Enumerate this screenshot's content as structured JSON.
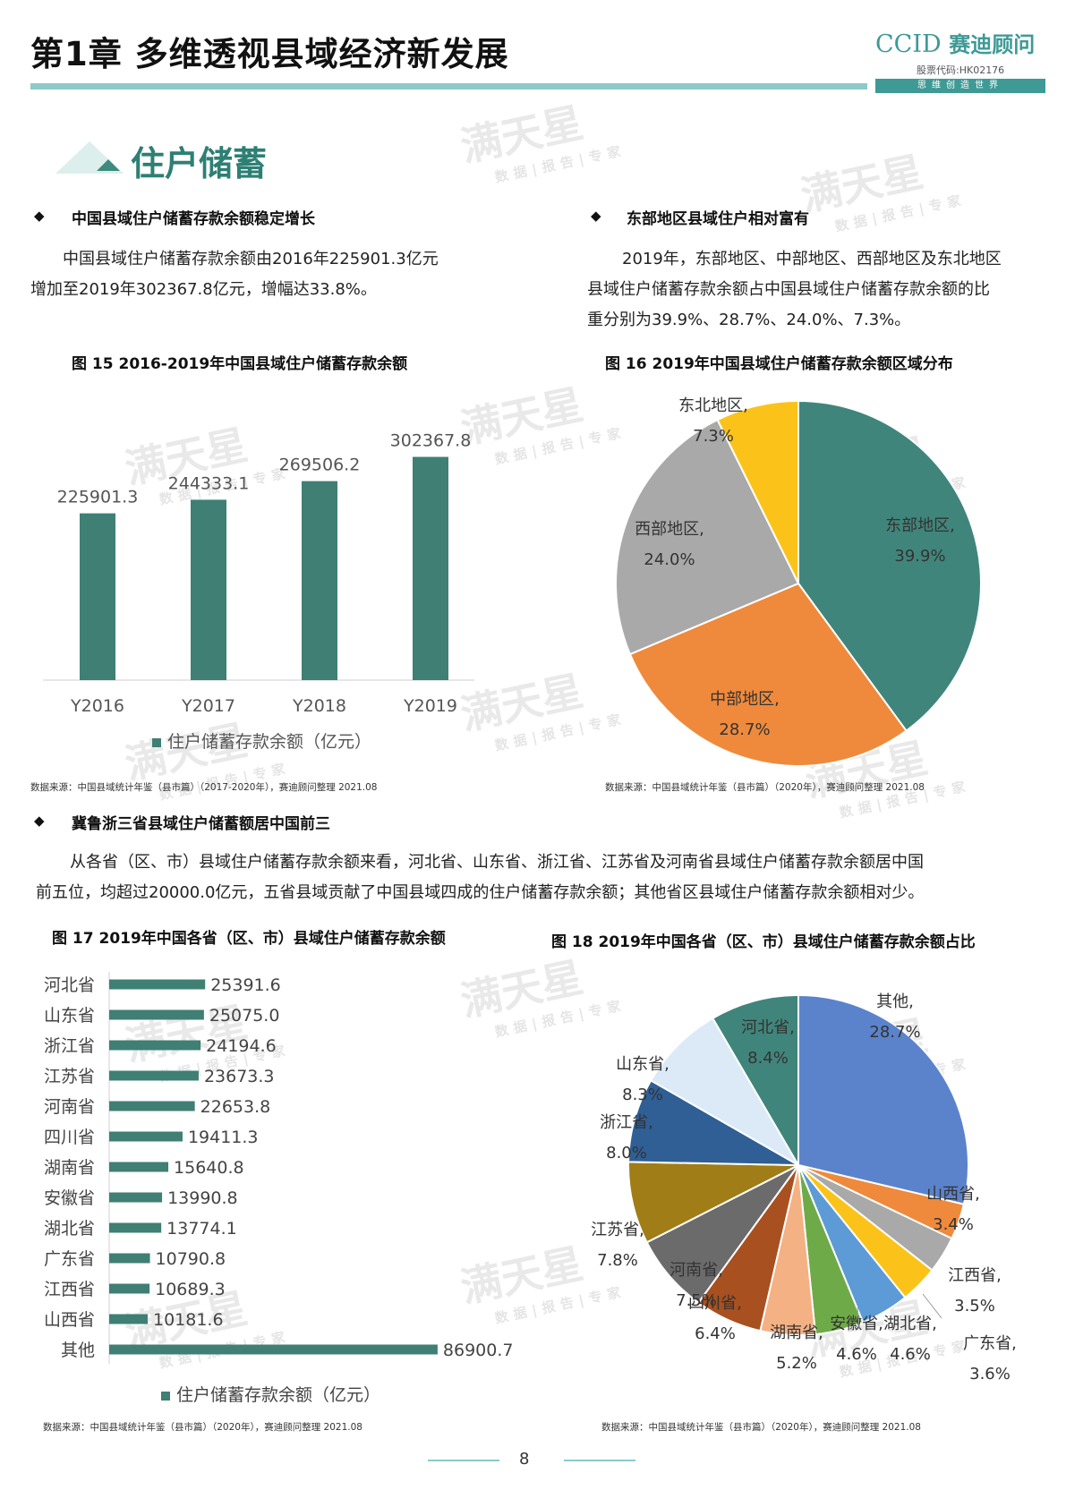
{
  "header": {
    "chapter_title": "第1章  多维透视县域经济新发展",
    "logo_text": "CCID",
    "logo_cn": "赛迪顾问",
    "stock_code": "股票代码:HK02176",
    "slogan": "思维创造世界"
  },
  "watermark": {
    "main": "满天星",
    "sub": "数据|报告|专家"
  },
  "section_title": "住户储蓄",
  "blocks": {
    "b1": {
      "heading": "中国县域住户储蓄存款余额稳定增长",
      "text_line1": "中国县域住户储蓄存款余额由2016年225901.3亿元",
      "text_line2": "增加至2019年302367.8亿元，增幅达33.8%。"
    },
    "b2": {
      "heading": "东部地区县域住户相对富有",
      "text_line1": "2019年，东部地区、中部地区、西部地区及东北地区",
      "text_line2": "县域住户储蓄存款余额占中国县域住户储蓄存款余额的比",
      "text_line3": "重分别为39.9%、28.7%、24.0%、7.3%。"
    },
    "b3": {
      "heading": "冀鲁浙三省县域住户储蓄额居中国前三",
      "text_line1": "从各省（区、市）县域住户储蓄存款余额来看，河北省、山东省、浙江省、江苏省及河南省县域住户储蓄存款余额居中国",
      "text_line2": "前五位，均超过20000.0亿元，五省县域贡献了中国县域四成的住户储蓄存款余额；其他省区县域住户储蓄存款余额相对少。"
    }
  },
  "fig15": {
    "title": "图 15  2016-2019年中国县域住户储蓄存款余额",
    "source": "数据来源：中国县域统计年鉴（县市篇）（2017-2020年），赛迪顾问整理  2021.08"
  },
  "fig16": {
    "title": "图 16  2019年中国县域住户储蓄存款余额区域分布",
    "source": "数据来源：中国县域统计年鉴（县市篇）（2020年），赛迪顾问整理  2021.08"
  },
  "fig17": {
    "title": "图 17  2019年中国各省（区、市）县域住户储蓄存款余额",
    "source": "数据来源：中国县域统计年鉴（县市篇）（2020年），赛迪顾问整理  2021.08"
  },
  "fig18": {
    "title": "图 18  2019年中国各省（区、市）县域住户储蓄存款余额占比",
    "source": "数据来源：中国县域统计年鉴（县市篇）（2020年），赛迪顾问整理  2021.08"
  },
  "page_number": "8",
  "chart_data": [
    {
      "type": "bar",
      "categories": [
        "Y2016",
        "Y2017",
        "Y2018",
        "Y2019"
      ],
      "values": [
        225901.3,
        244333.1,
        269506.2,
        302367.8
      ],
      "value_labels": [
        "225901.3",
        "244333.1",
        "269506.2",
        "302367.8"
      ],
      "series": [
        {
          "name": "住户储蓄存款余额（亿元）",
          "values": [
            225901.3,
            244333.1,
            269506.2,
            302367.8
          ]
        }
      ],
      "legend": "bottom",
      "color": "#3f7f74"
    },
    {
      "type": "pie",
      "categories": [
        "东部地区",
        "中部地区",
        "西部地区",
        "东北地区"
      ],
      "values": [
        39.9,
        28.7,
        24.0,
        7.3
      ],
      "value_labels": [
        "39.9%",
        "28.7%",
        "24.0%",
        "7.3%"
      ],
      "colors": [
        "#40857b",
        "#ef8a3c",
        "#a9a9a9",
        "#fbc31a"
      ]
    },
    {
      "type": "bar",
      "orientation": "horizontal",
      "categories": [
        "河北省",
        "山东省",
        "浙江省",
        "江苏省",
        "河南省",
        "四川省",
        "湖南省",
        "安徽省",
        "湖北省",
        "广东省",
        "江西省",
        "山西省",
        "其他"
      ],
      "values": [
        25391.6,
        25075.0,
        24194.6,
        23673.3,
        22653.8,
        19411.3,
        15640.8,
        13990.8,
        13774.1,
        10790.8,
        10689.3,
        10181.6,
        86900.7
      ],
      "value_labels": [
        "25391.6",
        "25075.0",
        "24194.6",
        "23673.3",
        "22653.8",
        "19411.3",
        "15640.8",
        "13990.8",
        "13774.1",
        "10790.8",
        "10689.3",
        "10181.6",
        "86900.7"
      ],
      "series": [
        {
          "name": "住户储蓄存款余额（亿元）",
          "values": [
            25391.6,
            25075.0,
            24194.6,
            23673.3,
            22653.8,
            19411.3,
            15640.8,
            13990.8,
            13774.1,
            10790.8,
            10689.3,
            10181.6,
            86900.7
          ]
        }
      ],
      "legend": "bottom",
      "color": "#3f7f74"
    },
    {
      "type": "pie",
      "categories": [
        "其他",
        "山西省",
        "江西省",
        "广东省",
        "湖北省",
        "安徽省",
        "湖南省",
        "四川省",
        "河南省",
        "江苏省",
        "浙江省",
        "山东省",
        "河北省"
      ],
      "values": [
        28.7,
        3.4,
        3.5,
        3.6,
        4.6,
        4.6,
        5.2,
        6.4,
        7.5,
        7.8,
        8.0,
        8.3,
        8.4
      ],
      "value_labels": [
        "28.7%",
        "3.4%",
        "3.5%",
        "3.6%",
        "4.6%",
        "4.6%",
        "5.2%",
        "6.4%",
        "7.5%",
        "7.8%",
        "8.0%",
        "8.3%",
        "8.4%"
      ],
      "colors": [
        "#5b83cc",
        "#ef8a3c",
        "#a9a9a9",
        "#fbc31a",
        "#5c9bd5",
        "#6eab48",
        "#f4b183",
        "#a8501f",
        "#6b6b6b",
        "#a07d16",
        "#2f5f95",
        "#dceaf7",
        "#40857b"
      ]
    }
  ]
}
